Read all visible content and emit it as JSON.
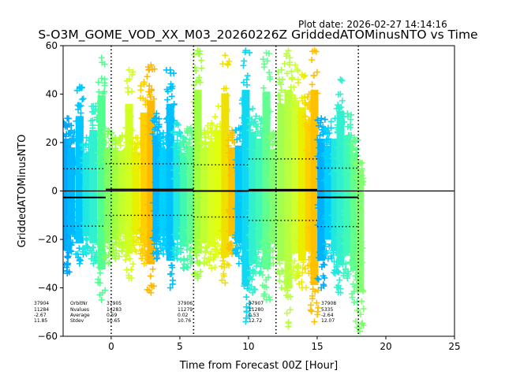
{
  "plot_date": "Plot date: 2026-02-27 14:14:16",
  "chart_data": {
    "type": "scatter",
    "title": "S-O3M_GOME_VOD_XX_M03_20260226Z GriddedATOMinusNTO vs Time",
    "xlabel": "Time from Forecast 00Z [Hour]",
    "ylabel": "GriddedATOMinusNTO",
    "xlim": [
      -3.5,
      25
    ],
    "ylim": [
      -60,
      60
    ],
    "xticks": [
      0,
      5,
      10,
      15,
      20,
      25
    ],
    "yticks": [
      -60,
      -40,
      -20,
      0,
      20,
      40,
      60
    ],
    "grid": false,
    "marker": "+",
    "zero_line": 0,
    "orbit_boundaries": [
      0,
      6,
      12,
      18
    ],
    "row_labels": [
      "OrbitNr",
      "Nvalues",
      "Average",
      "Stdev"
    ],
    "orbits": [
      {
        "orbit": "37904",
        "nvalues": "11284",
        "average": "-2.67",
        "stdev": "11.85",
        "x_start": -3.5,
        "x_end": -0.4,
        "avg": -2.67,
        "sd": 11.85
      },
      {
        "orbit": "37905",
        "nvalues": "14283",
        "average": "0.59",
        "stdev": "10.65",
        "x_start": -0.4,
        "x_end": 6.0,
        "avg": 0.59,
        "sd": 10.65
      },
      {
        "orbit": "37906",
        "nvalues": "11279",
        "average": "0.02",
        "stdev": "10.76",
        "x_start": 6.0,
        "x_end": 10.0,
        "avg": 0.02,
        "sd": 10.76
      },
      {
        "orbit": "37907",
        "nvalues": "11280",
        "average": "0.53",
        "stdev": "12.72",
        "x_start": 10.0,
        "x_end": 15.0,
        "avg": 0.53,
        "sd": 12.72
      },
      {
        "orbit": "37908",
        "nvalues": "5335",
        "average": "-2.64",
        "stdev": "12.07",
        "x_start": 15.0,
        "x_end": 18.0,
        "avg": -2.64,
        "sd": 12.07
      }
    ],
    "strips": [
      {
        "x": -3.2,
        "ymin": -34,
        "ymax": 30,
        "color": "#00a8ff"
      },
      {
        "x": -2.9,
        "ymin": -25,
        "ymax": 25,
        "color": "#00b8ff"
      },
      {
        "x": -2.3,
        "ymin": -30,
        "ymax": 43,
        "color": "#00c8ff"
      },
      {
        "x": -1.8,
        "ymin": -26,
        "ymax": 22,
        "color": "#20e8e0"
      },
      {
        "x": -1.3,
        "ymin": -30,
        "ymax": 35,
        "color": "#30f0d0"
      },
      {
        "x": -0.7,
        "ymin": -45,
        "ymax": 55,
        "color": "#50ff90"
      },
      {
        "x": -0.2,
        "ymin": -30,
        "ymax": 25,
        "color": "#80ff60"
      },
      {
        "x": 0.3,
        "ymin": -28,
        "ymax": 22,
        "color": "#a0ff40"
      },
      {
        "x": 0.8,
        "ymin": -25,
        "ymax": 23,
        "color": "#c0ff30"
      },
      {
        "x": 1.3,
        "ymin": -36,
        "ymax": 50,
        "color": "#d0ff20"
      },
      {
        "x": 1.8,
        "ymin": -25,
        "ymax": 22,
        "color": "#e8f000"
      },
      {
        "x": 2.4,
        "ymin": -30,
        "ymax": 45,
        "color": "#ffd000"
      },
      {
        "x": 2.9,
        "ymin": -42,
        "ymax": 52,
        "color": "#ffb800"
      },
      {
        "x": 3.3,
        "ymin": -28,
        "ymax": 32,
        "color": "#00b8ff"
      },
      {
        "x": 3.8,
        "ymin": -26,
        "ymax": 24,
        "color": "#00d0ff"
      },
      {
        "x": 4.3,
        "ymin": -40,
        "ymax": 50,
        "color": "#00c0ff"
      },
      {
        "x": 4.8,
        "ymin": -28,
        "ymax": 28,
        "color": "#20e8e0"
      },
      {
        "x": 5.3,
        "ymin": -32,
        "ymax": 22,
        "color": "#40f8b0"
      },
      {
        "x": 5.8,
        "ymin": -30,
        "ymax": 26,
        "color": "#60ff90"
      },
      {
        "x": 6.3,
        "ymin": -36,
        "ymax": 58,
        "color": "#a0ff40"
      },
      {
        "x": 6.8,
        "ymin": -30,
        "ymax": 25,
        "color": "#c0ff30"
      },
      {
        "x": 7.3,
        "ymin": -32,
        "ymax": 28,
        "color": "#d8ff20"
      },
      {
        "x": 7.8,
        "ymin": -26,
        "ymax": 35,
        "color": "#e0ff10"
      },
      {
        "x": 8.3,
        "ymin": -38,
        "ymax": 56,
        "color": "#f0e000"
      },
      {
        "x": 8.8,
        "ymin": -26,
        "ymax": 25,
        "color": "#ffc000"
      },
      {
        "x": 9.3,
        "ymin": -30,
        "ymax": 26,
        "color": "#00c8ff"
      },
      {
        "x": 9.8,
        "ymin": -54,
        "ymax": 58,
        "color": "#10d8f0"
      },
      {
        "x": 10.3,
        "ymin": -42,
        "ymax": 34,
        "color": "#30f0d0"
      },
      {
        "x": 10.8,
        "ymin": -34,
        "ymax": 30,
        "color": "#40f8b8"
      },
      {
        "x": 11.3,
        "ymin": -45,
        "ymax": 57,
        "color": "#60ff90"
      },
      {
        "x": 11.8,
        "ymin": -30,
        "ymax": 24,
        "color": "#80ff70"
      },
      {
        "x": 12.4,
        "ymin": -40,
        "ymax": 50,
        "color": "#a0ff50"
      },
      {
        "x": 12.9,
        "ymin": -56,
        "ymax": 58,
        "color": "#b8ff40"
      },
      {
        "x": 13.4,
        "ymin": -36,
        "ymax": 52,
        "color": "#d0ff30"
      },
      {
        "x": 13.9,
        "ymin": -40,
        "ymax": 48,
        "color": "#e8f000"
      },
      {
        "x": 14.4,
        "ymin": -34,
        "ymax": 40,
        "color": "#ffd000"
      },
      {
        "x": 14.8,
        "ymin": -54,
        "ymax": 58,
        "color": "#ffc000"
      },
      {
        "x": 15.3,
        "ymin": -40,
        "ymax": 30,
        "color": "#00b0ff"
      },
      {
        "x": 15.8,
        "ymin": -28,
        "ymax": 26,
        "color": "#00d0ff"
      },
      {
        "x": 16.3,
        "ymin": -34,
        "ymax": 30,
        "color": "#20e8e0"
      },
      {
        "x": 16.7,
        "ymin": -42,
        "ymax": 46,
        "color": "#30f0d0"
      },
      {
        "x": 17.2,
        "ymin": -36,
        "ymax": 32,
        "color": "#40f8b8"
      },
      {
        "x": 17.7,
        "ymin": -46,
        "ymax": 22,
        "color": "#60ff90"
      },
      {
        "x": 18.1,
        "ymin": -58,
        "ymax": 12,
        "color": "#80ff70"
      }
    ]
  }
}
